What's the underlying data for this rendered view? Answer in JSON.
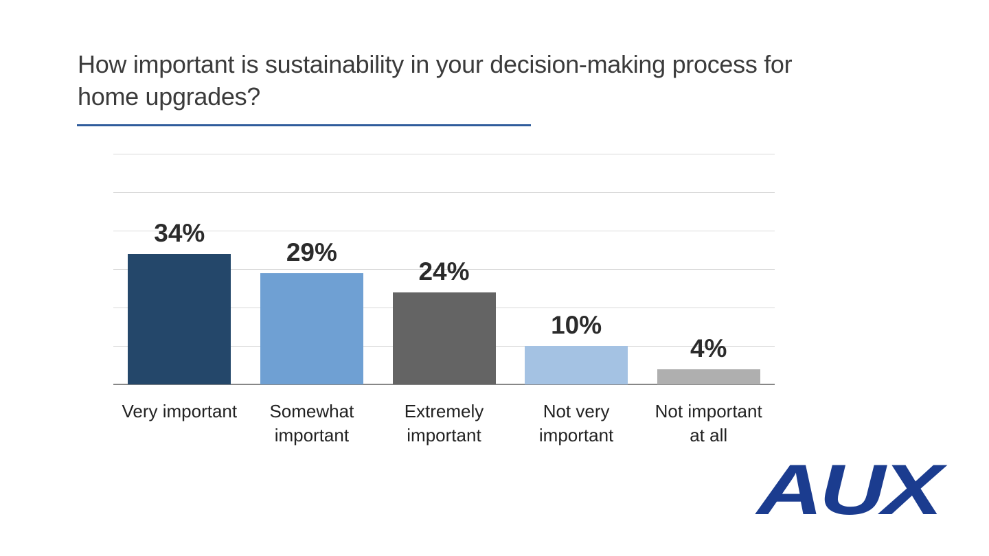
{
  "title": {
    "lines": [
      "How important is sustainability in your decision-making process for",
      "home upgrades?"
    ]
  },
  "logo": {
    "text": "AUX"
  },
  "colors": {
    "title": "#3B3B3B",
    "underline": "#2F5C9C",
    "gridline": "#D9D9D9",
    "axis": "#878787",
    "value_label": "#2B2B2B",
    "category_label": "#222222",
    "logo": "#1B3C8F",
    "background": "#FFFFFF"
  },
  "chart_data": {
    "type": "bar",
    "title": "How important is sustainability in your decision-making process for home upgrades?",
    "categories": [
      "Very important",
      "Somewhat important",
      "Extremely important",
      "Not very important",
      "Not important at all"
    ],
    "category_label_lines": [
      [
        "Very important"
      ],
      [
        "Somewhat",
        "important"
      ],
      [
        "Extremely",
        "important"
      ],
      [
        "Not very",
        "important"
      ],
      [
        "Not important",
        "at all"
      ]
    ],
    "values": [
      34,
      29,
      24,
      10,
      4
    ],
    "value_labels": [
      "34%",
      "29%",
      "24%",
      "10%",
      "4%"
    ],
    "bar_colors": [
      "#24476A",
      "#6FA0D3",
      "#646464",
      "#A4C2E3",
      "#AFAFAF"
    ],
    "xlabel": "",
    "ylabel": "",
    "ylim": [
      0,
      60
    ],
    "gridline_step": 10,
    "grid": true,
    "legend": false,
    "y_axis_tick_labels_visible": false
  }
}
